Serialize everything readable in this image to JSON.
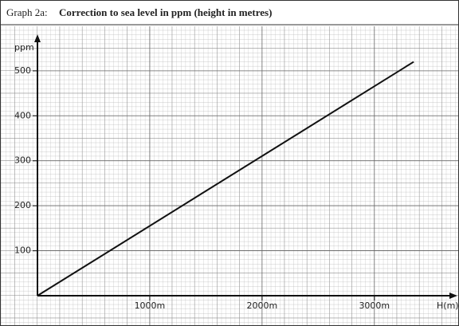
{
  "chart_data": {
    "type": "line",
    "title_prefix": "Graph 2a:",
    "title": "Correction to sea level in ppm (height in metres)",
    "xlabel": "H(m)",
    "ylabel": "ppm",
    "x": [
      0,
      3350
    ],
    "values": [
      0,
      520
    ],
    "color": "#111111",
    "xlim": [
      0,
      3640
    ],
    "ylim": [
      0,
      560
    ],
    "xticks": [
      {
        "value": 1000,
        "label": "1000m"
      },
      {
        "value": 2000,
        "label": "2000m"
      },
      {
        "value": 3000,
        "label": "3000m"
      }
    ],
    "yticks": [
      100,
      200,
      300,
      400,
      500
    ],
    "grid": true
  }
}
